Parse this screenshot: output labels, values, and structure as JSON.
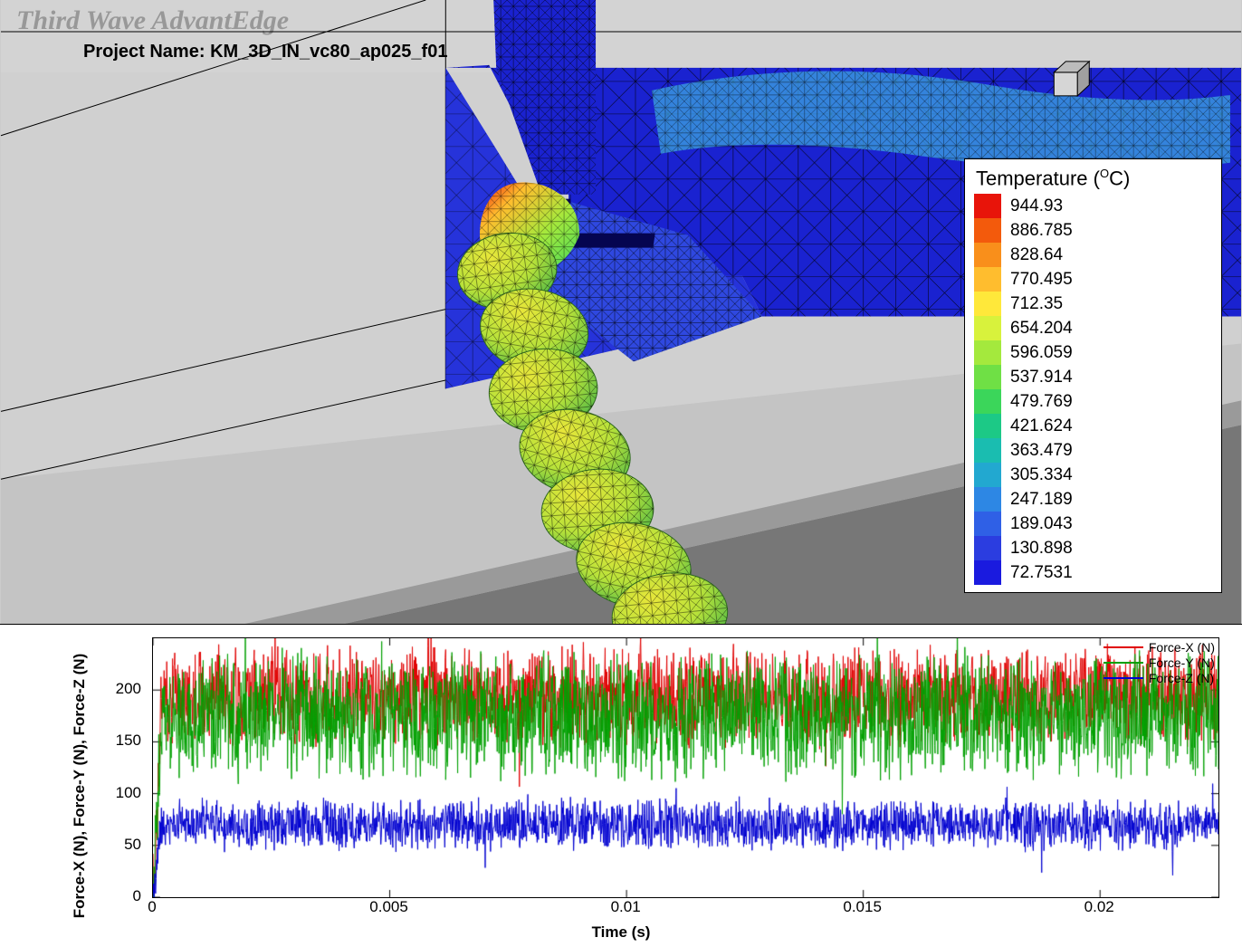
{
  "app": {
    "watermark": "Third Wave AdvantEdge",
    "project_label": "Project Name: ",
    "project_name": "KM_3D_IN_vc80_ap025_f01"
  },
  "legend": {
    "title_html": "Temperature (°C)",
    "title_prefix": "Temperature (",
    "title_deg": "O",
    "title_suffix": "C)",
    "values": [
      "944.93",
      "886.785",
      "828.64",
      "770.495",
      "712.35",
      "654.204",
      "596.059",
      "537.914",
      "479.769",
      "421.624",
      "363.479",
      "305.334",
      "247.189",
      "189.043",
      "130.898",
      "72.7531"
    ],
    "colors": [
      "#e8140a",
      "#f35a0c",
      "#f98f1b",
      "#ffbd2e",
      "#ffe83a",
      "#d8f23c",
      "#a4e93d",
      "#6fe045",
      "#3bd65a",
      "#1cc986",
      "#1abdb0",
      "#22a8d0",
      "#2d87e4",
      "#2f60e6",
      "#2b3de0",
      "#1a1adf"
    ]
  },
  "sim_scene": {
    "background": "#cccccc",
    "mesh_edge": "#000000",
    "tool_fill": "#1b29d6",
    "tool_highlight": "#3556e8",
    "hot_zone_gradient": [
      "#e8140a",
      "#ffbd2e",
      "#d8f23c",
      "#3bd65a",
      "#1abdb0"
    ],
    "chip_segment_fill": "#bde23d",
    "chip_segment_shadow": "#6fc034",
    "floor_light": "#d0d0d0",
    "floor_dark": "#7a7a7a"
  },
  "force_plot": {
    "x_label": "Time (s)",
    "y_label": "Force-X (N), Force-Y (N), Force-Z (N)",
    "x_ticks": [
      0,
      0.005,
      0.01,
      0.015,
      0.02
    ],
    "x_tick_labels": [
      "0",
      "0.005",
      "0.01",
      "0.015",
      "0.02"
    ],
    "x_range": [
      0,
      0.0225
    ],
    "y_ticks": [
      0,
      50,
      100,
      150,
      200
    ],
    "y_range": [
      0,
      250
    ],
    "series": [
      {
        "name": "Force-X (N)",
        "color": "#e00000",
        "mean": 195,
        "noise": 35
      },
      {
        "name": "Force-Y (N)",
        "color": "#00a000",
        "mean": 175,
        "noise": 45
      },
      {
        "name": "Force-Z (N)",
        "color": "#0000d0",
        "mean": 70,
        "noise": 18
      }
    ],
    "tick_fontsize": 17,
    "label_fontsize": 17,
    "label_fontweight": "bold",
    "legend_fontsize": 14,
    "frame_color": "#000000",
    "background": "#ffffff"
  }
}
